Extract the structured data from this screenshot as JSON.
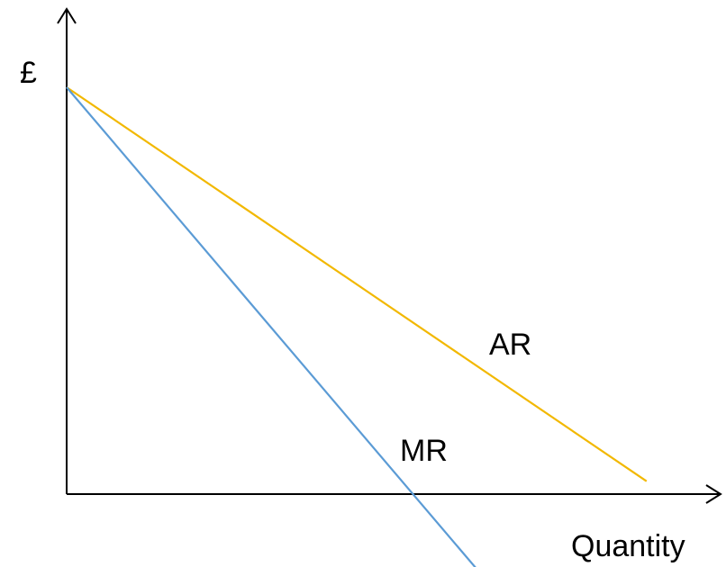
{
  "chart_data": {
    "type": "line",
    "title": "",
    "xlabel": "Quantity",
    "ylabel": "£",
    "xlim": [
      0,
      10
    ],
    "ylim": [
      -1.2,
      6
    ],
    "grid": false,
    "legend": "none",
    "series": [
      {
        "name": "AR",
        "color": "#f2b800",
        "x": [
          0,
          8.7
        ],
        "y": [
          6,
          0.19
        ]
      },
      {
        "name": "MR",
        "color": "#5b9bd5",
        "x": [
          0,
          6.2
        ],
        "y": [
          6,
          -1.16
        ]
      }
    ]
  }
}
